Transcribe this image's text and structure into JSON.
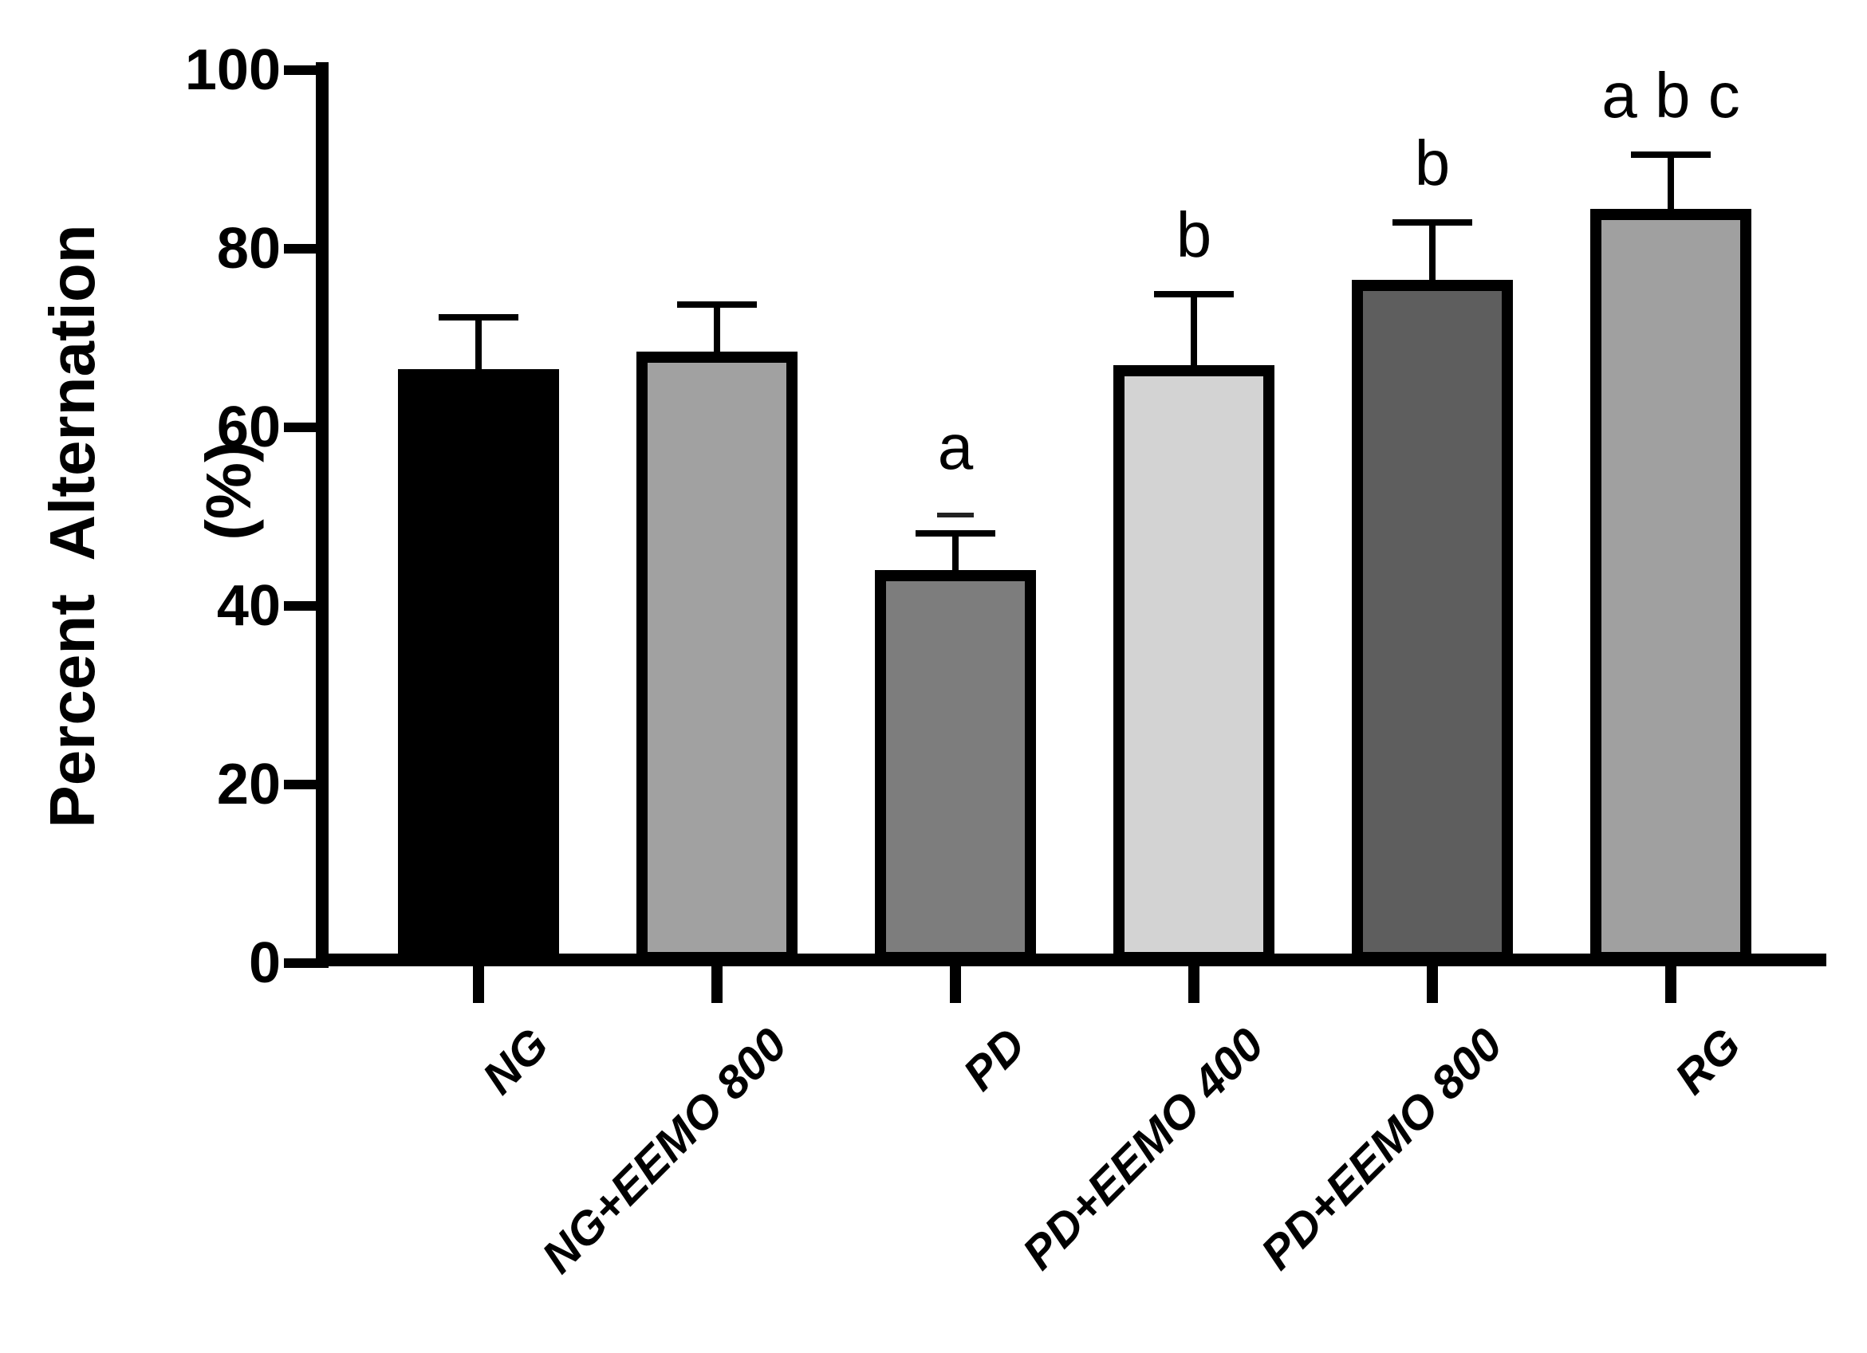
{
  "figure": {
    "background_color": "#ffffff",
    "ink_color": "#000000"
  },
  "chart_data": {
    "type": "bar",
    "title": "",
    "ylabel_line1": "Percent  Alternation",
    "ylabel_line2": "(%)",
    "xlabel": "",
    "ylim": [
      0,
      100
    ],
    "yticks": [
      0,
      20,
      40,
      60,
      80,
      100
    ],
    "grid": false,
    "legend_position": "none",
    "categories": [
      "NG",
      "NG+EEMO 800",
      "PD",
      "PD+EEMO 400",
      "PD+EEMO 800",
      "RG"
    ],
    "series": [
      {
        "name": "Percent Alternation (%)",
        "values": [
          66.5,
          68.5,
          44,
          67,
          76.5,
          84.5
        ],
        "errors_plus": [
          6.2,
          5.6,
          4.5,
          8.3,
          6.8,
          6.4
        ]
      }
    ],
    "significance_annotations": [
      "",
      "",
      "a",
      "b",
      "b",
      "a b c"
    ],
    "dash_above_error": [
      false,
      false,
      true,
      false,
      false,
      false
    ],
    "bar_fill_colors": [
      "#000000",
      "#a1a1a1",
      "#7d7d7d",
      "#d3d3d3",
      "#5e5e5e",
      "#a0a0a0"
    ],
    "bar_border_color": "#000000",
    "error_bar_color": "#000000"
  }
}
